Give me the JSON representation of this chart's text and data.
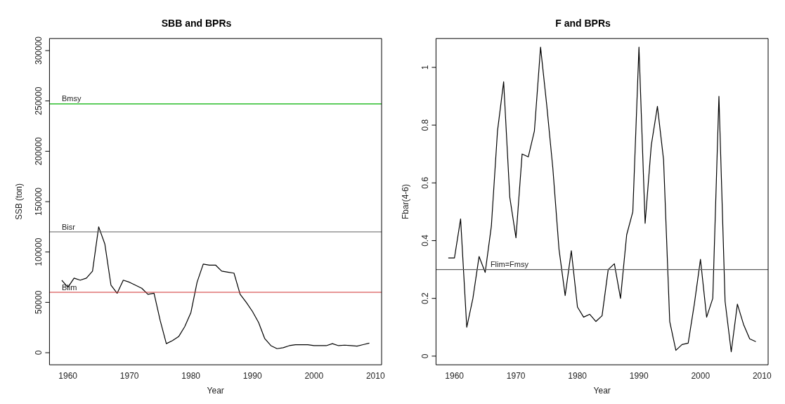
{
  "chart_data": [
    {
      "type": "line",
      "title": "SBB and BPRs",
      "xlabel": "Year",
      "ylabel": "SSB (ton)",
      "grid": false,
      "legend": false,
      "marker": "none",
      "line_style": "solid",
      "x": [
        1959,
        1960,
        1961,
        1962,
        1963,
        1964,
        1965,
        1966,
        1967,
        1968,
        1969,
        1970,
        1971,
        1972,
        1973,
        1974,
        1975,
        1976,
        1977,
        1978,
        1979,
        1980,
        1981,
        1982,
        1983,
        1984,
        1985,
        1986,
        1987,
        1988,
        1989,
        1990,
        1991,
        1992,
        1993,
        1994,
        1995,
        1996,
        1997,
        1998,
        1999,
        2000,
        2001,
        2002,
        2003,
        2004,
        2005,
        2006,
        2007,
        2008,
        2009
      ],
      "series": [
        {
          "color": "#000000",
          "values": [
            72000,
            65000,
            74000,
            72000,
            74000,
            81000,
            125000,
            108000,
            67000,
            59000,
            72000,
            70000,
            67000,
            64000,
            58000,
            59000,
            32000,
            9000,
            12000,
            16000,
            26000,
            40000,
            70000,
            88000,
            87000,
            87000,
            81000,
            80000,
            79000,
            58000,
            50000,
            41000,
            30000,
            14000,
            7000,
            4000,
            5000,
            7000,
            8000,
            8000,
            8000,
            7000,
            7000,
            7000,
            9000,
            7000,
            7500,
            7000,
            6500,
            8000,
            9500
          ]
        }
      ],
      "xlim": [
        1957,
        2011
      ],
      "xticks": [
        1960,
        1970,
        1980,
        1990,
        2000,
        2010
      ],
      "ylim": [
        -12000,
        312000
      ],
      "yticks": [
        0,
        50000,
        100000,
        150000,
        200000,
        250000,
        300000
      ],
      "ref_lines": [
        {
          "axis": "y",
          "value": 247000,
          "label": "Bmsy",
          "color": "#00b000"
        },
        {
          "axis": "y",
          "value": 120000,
          "label": "Bisr",
          "color": "#606060"
        },
        {
          "axis": "y",
          "value": 60000,
          "label": "Blim",
          "color": "#d03030"
        }
      ]
    },
    {
      "type": "line",
      "title": "F and BPRs",
      "xlabel": "Year",
      "ylabel": "Fbar(4-6)",
      "grid": false,
      "legend": false,
      "marker": "none",
      "line_style": "solid",
      "x": [
        1959,
        1960,
        1961,
        1962,
        1963,
        1964,
        1965,
        1966,
        1967,
        1968,
        1969,
        1970,
        1971,
        1972,
        1973,
        1974,
        1975,
        1976,
        1977,
        1978,
        1979,
        1980,
        1981,
        1982,
        1983,
        1984,
        1985,
        1986,
        1987,
        1988,
        1989,
        1990,
        1991,
        1992,
        1993,
        1994,
        1995,
        1996,
        1997,
        1998,
        1999,
        2000,
        2001,
        2002,
        2003,
        2004,
        2005,
        2006,
        2007,
        2008,
        2009
      ],
      "series": [
        {
          "color": "#000000",
          "values": [
            0.34,
            0.34,
            0.475,
            0.1,
            0.2,
            0.345,
            0.29,
            0.45,
            0.78,
            0.95,
            0.55,
            0.41,
            0.7,
            0.69,
            0.78,
            1.07,
            0.87,
            0.65,
            0.37,
            0.21,
            0.365,
            0.17,
            0.135,
            0.145,
            0.12,
            0.14,
            0.3,
            0.32,
            0.2,
            0.42,
            0.5,
            1.07,
            0.46,
            0.73,
            0.865,
            0.68,
            0.12,
            0.02,
            0.04,
            0.045,
            0.18,
            0.335,
            0.135,
            0.2,
            0.9,
            0.19,
            0.015,
            0.18,
            0.11,
            0.06,
            0.05
          ]
        }
      ],
      "xlim": [
        1957,
        2011
      ],
      "xticks": [
        1960,
        1970,
        1980,
        1990,
        2000,
        2010
      ],
      "ylim": [
        -0.03,
        1.1
      ],
      "yticks": [
        0,
        0.2,
        0.4,
        0.6,
        0.8,
        1
      ],
      "ref_lines": [
        {
          "axis": "y",
          "value": 0.3,
          "label": "Flim=Fmsy",
          "color": "#606060"
        }
      ]
    }
  ]
}
